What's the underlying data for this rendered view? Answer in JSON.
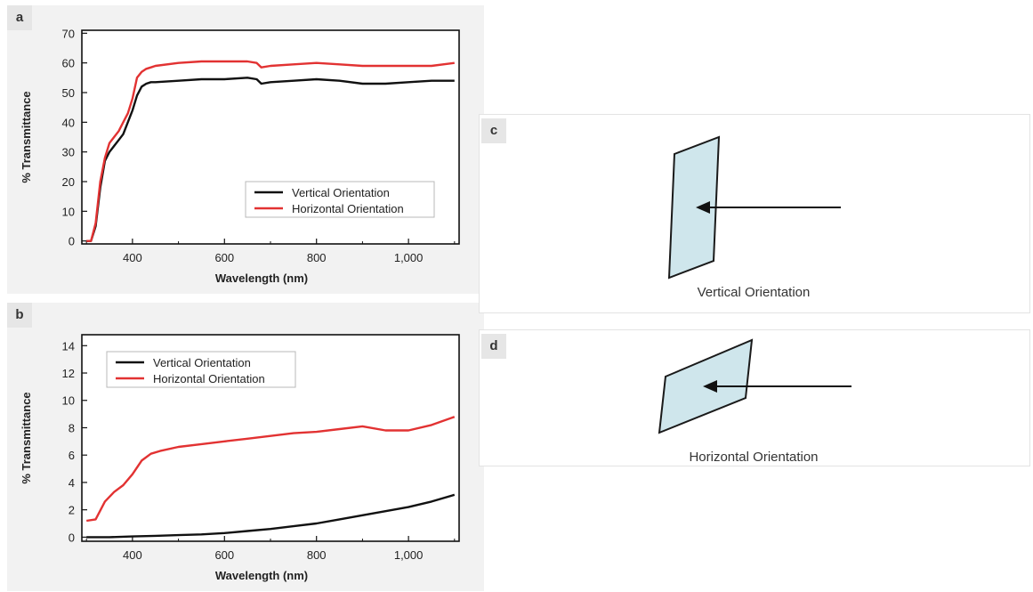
{
  "panels": {
    "a": "a",
    "b": "b",
    "c": "c",
    "d": "d"
  },
  "diagrams": {
    "c_caption": "Vertical Orientation",
    "d_caption": "Horizontal Orientation",
    "sample_fill": "#cfe6ec",
    "sample_stroke": "#1a1a1a"
  },
  "colors": {
    "vertical": "#111111",
    "horizontal": "#e23232"
  },
  "chart_data": [
    {
      "id": "a",
      "type": "line",
      "title": "",
      "xlabel": "Wavelength (nm)",
      "ylabel": "% Transmittance",
      "xlim": [
        290,
        1110
      ],
      "ylim": [
        -1,
        71
      ],
      "xticks": [
        400,
        600,
        800,
        1000
      ],
      "xtick_labels": [
        "400",
        "600",
        "800",
        "1,000"
      ],
      "yticks": [
        0,
        10,
        20,
        30,
        40,
        50,
        60,
        70
      ],
      "ytick_labels": [
        "0",
        "10",
        "20",
        "30",
        "40",
        "50",
        "60",
        "70"
      ],
      "grid": false,
      "legend": "lower-right",
      "series": [
        {
          "name": "Vertical Orientation",
          "color": "#111111",
          "x": [
            300,
            310,
            320,
            330,
            340,
            350,
            360,
            370,
            380,
            390,
            400,
            410,
            420,
            430,
            440,
            450,
            500,
            550,
            600,
            650,
            670,
            680,
            700,
            750,
            800,
            850,
            900,
            950,
            1000,
            1050,
            1100
          ],
          "y": [
            0,
            0,
            5,
            18,
            27,
            30,
            32,
            34,
            36,
            40,
            44,
            49,
            52,
            53,
            53.5,
            53.5,
            54,
            54.5,
            54.5,
            55,
            54.5,
            53,
            53.5,
            54,
            54.5,
            54,
            53,
            53,
            53.5,
            54,
            54
          ]
        },
        {
          "name": "Horizontal Orientation",
          "color": "#e23232",
          "x": [
            300,
            310,
            320,
            330,
            340,
            350,
            360,
            370,
            380,
            390,
            400,
            410,
            420,
            430,
            440,
            450,
            500,
            550,
            600,
            650,
            670,
            680,
            700,
            750,
            800,
            850,
            900,
            950,
            1000,
            1050,
            1100
          ],
          "y": [
            0,
            0,
            6,
            20,
            28,
            33,
            35,
            37,
            40,
            43,
            48,
            55,
            57,
            58,
            58.5,
            59,
            60,
            60.5,
            60.5,
            60.5,
            60,
            58.5,
            59,
            59.5,
            60,
            59.5,
            59,
            59,
            59,
            59,
            60
          ]
        }
      ]
    },
    {
      "id": "b",
      "type": "line",
      "title": "",
      "xlabel": "Wavelength (nm)",
      "ylabel": "% Transmittance",
      "xlim": [
        290,
        1110
      ],
      "ylim": [
        -0.3,
        14.8
      ],
      "xticks": [
        400,
        600,
        800,
        1000
      ],
      "xtick_labels": [
        "400",
        "600",
        "800",
        "1,000"
      ],
      "yticks": [
        0,
        2,
        4,
        6,
        8,
        10,
        12,
        14
      ],
      "ytick_labels": [
        "0",
        "2",
        "4",
        "6",
        "8",
        "10",
        "12",
        "14"
      ],
      "grid": false,
      "legend": "top-left",
      "series": [
        {
          "name": "Vertical Orientation",
          "color": "#111111",
          "x": [
            300,
            350,
            400,
            450,
            500,
            550,
            600,
            650,
            700,
            750,
            800,
            850,
            900,
            950,
            1000,
            1050,
            1100
          ],
          "y": [
            0,
            0,
            0.05,
            0.1,
            0.15,
            0.2,
            0.3,
            0.45,
            0.6,
            0.8,
            1.0,
            1.3,
            1.6,
            1.9,
            2.2,
            2.6,
            3.1
          ]
        },
        {
          "name": "Horizontal Orientation",
          "color": "#e23232",
          "x": [
            300,
            320,
            340,
            360,
            380,
            400,
            420,
            440,
            460,
            500,
            550,
            600,
            650,
            700,
            750,
            800,
            850,
            900,
            950,
            1000,
            1050,
            1100
          ],
          "y": [
            1.2,
            1.3,
            2.6,
            3.3,
            3.8,
            4.6,
            5.6,
            6.1,
            6.3,
            6.6,
            6.8,
            7.0,
            7.2,
            7.4,
            7.6,
            7.7,
            7.9,
            8.1,
            7.8,
            7.8,
            8.2,
            8.8
          ]
        }
      ]
    }
  ]
}
